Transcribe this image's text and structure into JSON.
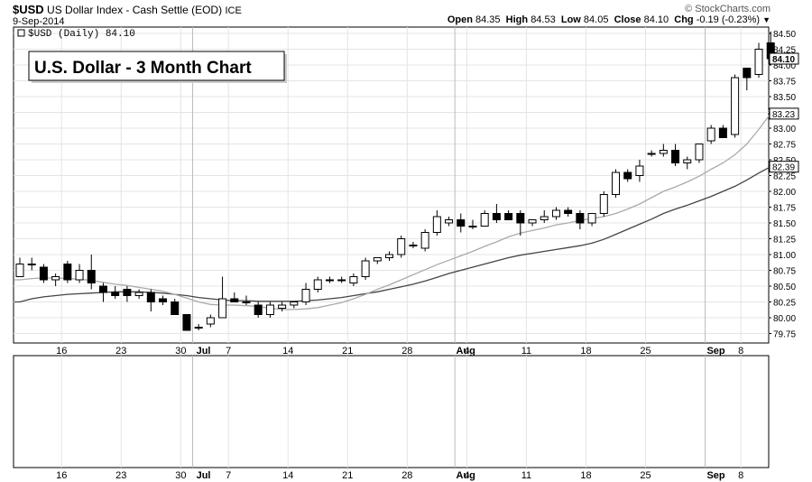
{
  "header": {
    "symbol": "$USD",
    "name": "US Dollar Index - Cash Settle (EOD)",
    "exchange": "ICE",
    "date": "9-Sep-2014",
    "copyright": "© StockCharts.com",
    "quote": {
      "open_label": "Open",
      "open": "84.35",
      "high_label": "High",
      "high": "84.53",
      "low_label": "Low",
      "low": "84.05",
      "close_label": "Close",
      "close": "84.10",
      "chg_label": "Chg",
      "chg": "-0.19 (-0.23%)"
    }
  },
  "chart_data": {
    "type": "candlestick",
    "title": "U.S. Dollar - 3 Month Chart",
    "legend": "$USD (Daily) 84.10",
    "legend_placement": "top-left",
    "grid": true,
    "ylim": [
      79.6,
      84.6
    ],
    "y_ticks": [
      "79.75",
      "80.00",
      "80.25",
      "80.50",
      "80.75",
      "81.00",
      "81.25",
      "81.50",
      "81.75",
      "82.00",
      "82.25",
      "82.50",
      "82.75",
      "83.00",
      "83.25",
      "83.50",
      "83.75",
      "84.00",
      "84.25",
      "84.50"
    ],
    "x_tick_labels": [
      {
        "label": "16",
        "index": 4
      },
      {
        "label": "23",
        "index": 9
      },
      {
        "label": "30",
        "index": 14
      },
      {
        "label": "Jul",
        "index": 15
      },
      {
        "label": "7",
        "index": 18
      },
      {
        "label": "14",
        "index": 23
      },
      {
        "label": "21",
        "index": 28
      },
      {
        "label": "28",
        "index": 33
      },
      {
        "label": "Aug",
        "index": 37
      },
      {
        "label": "4",
        "index": 38
      },
      {
        "label": "11",
        "index": 43
      },
      {
        "label": "18",
        "index": 48
      },
      {
        "label": "25",
        "index": 53
      },
      {
        "label": "Sep",
        "index": 58
      },
      {
        "label": "8",
        "index": 61
      }
    ],
    "price_tags": [
      {
        "value": "84.10",
        "y": 84.1,
        "bold": true
      },
      {
        "value": "83.23",
        "y": 83.23,
        "bold": false
      },
      {
        "value": "82.39",
        "y": 82.39,
        "bold": false
      }
    ],
    "candles": [
      {
        "o": 80.65,
        "h": 80.95,
        "l": 80.65,
        "c": 80.85
      },
      {
        "o": 80.85,
        "h": 80.95,
        "l": 80.75,
        "c": 80.85
      },
      {
        "o": 80.8,
        "h": 80.85,
        "l": 80.55,
        "c": 80.6
      },
      {
        "o": 80.6,
        "h": 80.7,
        "l": 80.5,
        "c": 80.65
      },
      {
        "o": 80.85,
        "h": 80.9,
        "l": 80.55,
        "c": 80.6
      },
      {
        "o": 80.6,
        "h": 80.85,
        "l": 80.55,
        "c": 80.75
      },
      {
        "o": 80.75,
        "h": 81.0,
        "l": 80.45,
        "c": 80.55
      },
      {
        "o": 80.5,
        "h": 80.55,
        "l": 80.25,
        "c": 80.4
      },
      {
        "o": 80.4,
        "h": 80.5,
        "l": 80.3,
        "c": 80.35
      },
      {
        "o": 80.45,
        "h": 80.5,
        "l": 80.25,
        "c": 80.35
      },
      {
        "o": 80.35,
        "h": 80.45,
        "l": 80.3,
        "c": 80.4
      },
      {
        "o": 80.4,
        "h": 80.45,
        "l": 80.1,
        "c": 80.25
      },
      {
        "o": 80.3,
        "h": 80.35,
        "l": 80.2,
        "c": 80.25
      },
      {
        "o": 80.25,
        "h": 80.3,
        "l": 80.05,
        "c": 80.05
      },
      {
        "o": 80.05,
        "h": 80.05,
        "l": 79.8,
        "c": 79.8
      },
      {
        "o": 79.85,
        "h": 79.9,
        "l": 79.8,
        "c": 79.85
      },
      {
        "o": 79.9,
        "h": 80.05,
        "l": 79.85,
        "c": 80.0
      },
      {
        "o": 80.0,
        "h": 80.65,
        "l": 80.0,
        "c": 80.3
      },
      {
        "o": 80.3,
        "h": 80.4,
        "l": 80.25,
        "c": 80.25
      },
      {
        "o": 80.25,
        "h": 80.35,
        "l": 80.2,
        "c": 80.25
      },
      {
        "o": 80.2,
        "h": 80.25,
        "l": 80.0,
        "c": 80.05
      },
      {
        "o": 80.05,
        "h": 80.25,
        "l": 80.0,
        "c": 80.2
      },
      {
        "o": 80.15,
        "h": 80.25,
        "l": 80.1,
        "c": 80.2
      },
      {
        "o": 80.2,
        "h": 80.25,
        "l": 80.15,
        "c": 80.25
      },
      {
        "o": 80.25,
        "h": 80.55,
        "l": 80.2,
        "c": 80.45
      },
      {
        "o": 80.45,
        "h": 80.65,
        "l": 80.4,
        "c": 80.6
      },
      {
        "o": 80.6,
        "h": 80.65,
        "l": 80.55,
        "c": 80.6
      },
      {
        "o": 80.6,
        "h": 80.65,
        "l": 80.55,
        "c": 80.6
      },
      {
        "o": 80.55,
        "h": 80.7,
        "l": 80.5,
        "c": 80.65
      },
      {
        "o": 80.65,
        "h": 80.95,
        "l": 80.6,
        "c": 80.9
      },
      {
        "o": 80.9,
        "h": 80.95,
        "l": 80.85,
        "c": 80.95
      },
      {
        "o": 80.95,
        "h": 81.05,
        "l": 80.9,
        "c": 81.0
      },
      {
        "o": 81.0,
        "h": 81.3,
        "l": 80.95,
        "c": 81.25
      },
      {
        "o": 81.15,
        "h": 81.2,
        "l": 81.1,
        "c": 81.15
      },
      {
        "o": 81.1,
        "h": 81.4,
        "l": 81.05,
        "c": 81.35
      },
      {
        "o": 81.35,
        "h": 81.7,
        "l": 81.3,
        "c": 81.6
      },
      {
        "o": 81.5,
        "h": 81.6,
        "l": 81.45,
        "c": 81.55
      },
      {
        "o": 81.55,
        "h": 81.65,
        "l": 81.35,
        "c": 81.45
      },
      {
        "o": 81.45,
        "h": 81.55,
        "l": 81.4,
        "c": 81.45
      },
      {
        "o": 81.45,
        "h": 81.7,
        "l": 81.45,
        "c": 81.65
      },
      {
        "o": 81.65,
        "h": 81.8,
        "l": 81.5,
        "c": 81.55
      },
      {
        "o": 81.65,
        "h": 81.7,
        "l": 81.55,
        "c": 81.55
      },
      {
        "o": 81.65,
        "h": 81.7,
        "l": 81.3,
        "c": 81.5
      },
      {
        "o": 81.5,
        "h": 81.55,
        "l": 81.45,
        "c": 81.55
      },
      {
        "o": 81.55,
        "h": 81.7,
        "l": 81.5,
        "c": 81.6
      },
      {
        "o": 81.6,
        "h": 81.75,
        "l": 81.55,
        "c": 81.7
      },
      {
        "o": 81.7,
        "h": 81.75,
        "l": 81.6,
        "c": 81.65
      },
      {
        "o": 81.65,
        "h": 81.7,
        "l": 81.4,
        "c": 81.5
      },
      {
        "o": 81.5,
        "h": 81.65,
        "l": 81.45,
        "c": 81.65
      },
      {
        "o": 81.65,
        "h": 82.0,
        "l": 81.6,
        "c": 81.95
      },
      {
        "o": 81.95,
        "h": 82.35,
        "l": 81.9,
        "c": 82.3
      },
      {
        "o": 82.3,
        "h": 82.35,
        "l": 82.15,
        "c": 82.2
      },
      {
        "o": 82.25,
        "h": 82.5,
        "l": 82.15,
        "c": 82.4
      },
      {
        "o": 82.6,
        "h": 82.65,
        "l": 82.55,
        "c": 82.6
      },
      {
        "o": 82.6,
        "h": 82.75,
        "l": 82.55,
        "c": 82.65
      },
      {
        "o": 82.65,
        "h": 82.75,
        "l": 82.4,
        "c": 82.45
      },
      {
        "o": 82.45,
        "h": 82.55,
        "l": 82.35,
        "c": 82.5
      },
      {
        "o": 82.5,
        "h": 82.75,
        "l": 82.45,
        "c": 82.75
      },
      {
        "o": 82.8,
        "h": 83.05,
        "l": 82.75,
        "c": 83.0
      },
      {
        "o": 83.0,
        "h": 83.05,
        "l": 82.85,
        "c": 82.85
      },
      {
        "o": 82.9,
        "h": 83.85,
        "l": 82.85,
        "c": 83.8
      },
      {
        "o": 83.95,
        "h": 83.95,
        "l": 83.6,
        "c": 83.8
      },
      {
        "o": 83.85,
        "h": 84.35,
        "l": 83.8,
        "c": 84.25
      },
      {
        "o": 84.35,
        "h": 84.53,
        "l": 84.05,
        "c": 84.1
      }
    ],
    "ma_short": [
      80.6,
      80.62,
      80.63,
      80.63,
      80.62,
      80.61,
      80.59,
      80.56,
      80.53,
      80.51,
      80.48,
      80.45,
      80.42,
      80.37,
      80.31,
      80.25,
      80.21,
      80.2,
      80.2,
      80.19,
      80.18,
      80.15,
      80.13,
      80.13,
      80.14,
      80.16,
      80.2,
      80.24,
      80.3,
      80.37,
      80.45,
      80.52,
      80.6,
      80.68,
      80.76,
      80.84,
      80.91,
      80.98,
      81.05,
      81.13,
      81.2,
      81.28,
      81.34,
      81.38,
      81.42,
      81.47,
      81.5,
      81.54,
      81.57,
      81.6,
      81.65,
      81.72,
      81.8,
      81.9,
      82.0,
      82.07,
      82.15,
      82.24,
      82.35,
      82.45,
      82.58,
      82.75,
      82.98,
      83.23
    ],
    "ma_long": [
      80.25,
      80.3,
      80.33,
      80.35,
      80.37,
      80.38,
      80.39,
      80.4,
      80.41,
      80.41,
      80.41,
      80.4,
      80.39,
      80.37,
      80.35,
      80.32,
      80.3,
      80.28,
      80.27,
      80.27,
      80.26,
      80.26,
      80.26,
      80.26,
      80.27,
      80.28,
      80.3,
      80.32,
      80.35,
      80.38,
      80.41,
      80.45,
      80.49,
      80.53,
      80.58,
      80.64,
      80.7,
      80.75,
      80.8,
      80.85,
      80.9,
      80.95,
      80.99,
      81.02,
      81.05,
      81.08,
      81.11,
      81.14,
      81.18,
      81.24,
      81.32,
      81.4,
      81.48,
      81.56,
      81.65,
      81.72,
      81.78,
      81.85,
      81.92,
      82.0,
      82.08,
      82.18,
      82.29,
      82.39
    ]
  }
}
